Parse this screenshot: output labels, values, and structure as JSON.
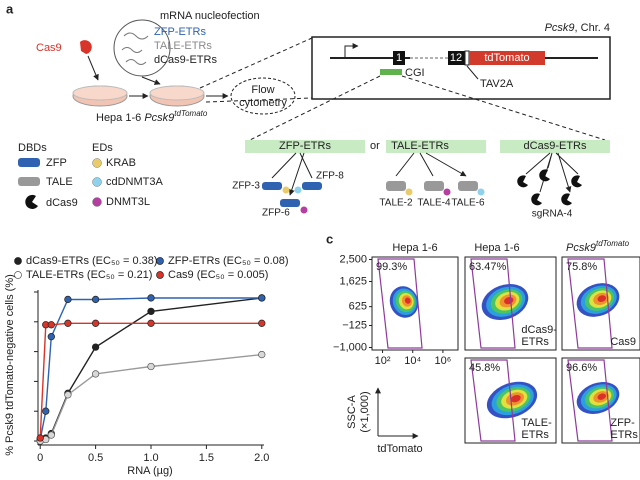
{
  "panel_a": {
    "label": "a",
    "nucleofection": "mRNA nucleofection",
    "etrs": [
      "ZFP-ETRs",
      "TALE-ETRs",
      "dCas9-ETRs"
    ],
    "cas9": "Cas9",
    "cells": "Hepa 1-6 ",
    "cells_gene": "Pcsk9",
    "cells_sup": "tdTomato",
    "flow": [
      "Flow",
      "cytometry"
    ],
    "locus": "Pcsk9",
    "locus_chr": ", Chr. 4",
    "exons": [
      "1",
      "12"
    ],
    "reporter": "tdTomato",
    "tav2a": "TAV2A",
    "cgi": "CGI",
    "dbd_title": "DBDs",
    "dbds": [
      "ZFP",
      "TALE",
      "dCas9"
    ],
    "ed_title": "EDs",
    "eds": [
      "KRAB",
      "cdDNMT3A",
      "DNMT3L"
    ],
    "or": "or",
    "groups": [
      {
        "name": "ZFP-ETRs",
        "members": [
          "ZFP-3",
          "ZFP-8",
          "ZFP-6"
        ]
      },
      {
        "name": "TALE-ETRs",
        "members": [
          "TALE-2",
          "TALE-4",
          "TALE-6"
        ]
      },
      {
        "name": "dCas9-ETRs",
        "members": [
          "sgRNA-4"
        ]
      }
    ]
  },
  "panel_b": {
    "chart": {
      "type": "line",
      "ylabel": "% Pcsk9 tdTomato-negative cells (%)",
      "xlabel": "RNA (µg)",
      "x": [
        0,
        0.05,
        0.1,
        0.25,
        0.5,
        1,
        2
      ],
      "xlim": [
        -0.02,
        2.02
      ],
      "ylim": [
        0,
        100
      ],
      "xticks": [
        0,
        0.5,
        {
          "value": 1,
          "label": "1.0"
        },
        {
          "value": 1.5,
          "label": "1.5"
        },
        {
          "value": 2,
          "label": "2.0"
        }
      ],
      "yticks": [
        0,
        20,
        40,
        60,
        80,
        100
      ],
      "series": [
        {
          "name": "dCas9-ETRs (EC₅₀ = 0.38)",
          "color": "#222222",
          "values": [
            0,
            2,
            5,
            32,
            63,
            87,
            96
          ]
        },
        {
          "name": "ZFP-ETRs (EC₅₀ = 0.08)",
          "color": "#2f62b0",
          "values": [
            1,
            20,
            70,
            95,
            95,
            96,
            96
          ]
        },
        {
          "name": "TALE-ETRs (EC₅₀ = 0.21)",
          "color": "#9a9a9a",
          "values": [
            0,
            1,
            4,
            31,
            45,
            50,
            58
          ]
        },
        {
          "name": "Cas9 (EC₅₀ = 0.005)",
          "color": "#d8342a",
          "values": [
            2,
            78,
            78,
            79,
            79,
            79,
            79
          ]
        }
      ]
    }
  },
  "panel_c": {
    "label": "c",
    "headers": [
      "Hepa 1-6",
      "Hepa 1-6"
    ],
    "header_gene": "Pcsk9",
    "header_sup": "tdTomato",
    "ylim": [
      -1100,
      2600
    ],
    "yticks": [
      {
        "value": 2500,
        "label": "2,500"
      },
      {
        "value": 1625,
        "label": "1,625"
      },
      {
        "value": 625,
        "label": "625"
      },
      {
        "value": -125,
        "label": "−125"
      },
      {
        "value": -1000,
        "label": "−1,000"
      }
    ],
    "xlim": [
      20,
      10000000
    ],
    "xticks": [
      {
        "value": 100,
        "label": "10²"
      },
      {
        "value": 10000,
        "label": "10⁴"
      },
      {
        "value": 1000000,
        "label": "10⁶"
      }
    ],
    "ylabel": [
      "SSC-A",
      "(×1,000)"
    ],
    "xlabel": "tdTomato",
    "plots": [
      {
        "percent": "99.3%"
      },
      {
        "percent": "63.47%",
        "label": [
          "dCas9-",
          "ETRs"
        ]
      },
      {
        "percent": "75.8%",
        "label": [
          "Cas9"
        ]
      },
      {
        "percent": "45.8%",
        "label": [
          "TALE-",
          "ETRs"
        ]
      },
      {
        "percent": "96.6%",
        "label": [
          "ZFP-",
          "ETRs"
        ]
      }
    ]
  }
}
